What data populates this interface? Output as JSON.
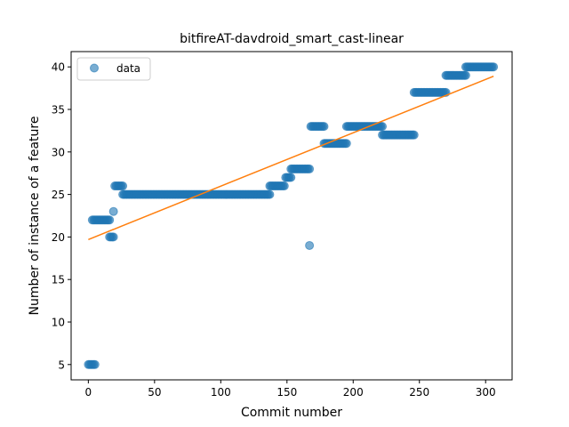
{
  "chart_data": {
    "type": "scatter",
    "title": "bitfireAT-davdroid_smart_cast-linear",
    "xlabel": "Commit number",
    "ylabel": "Number of instance of a feature",
    "xlim": [
      -13,
      320
    ],
    "ylim": [
      3.2,
      41.8
    ],
    "xticks": [
      0,
      50,
      100,
      150,
      200,
      250,
      300
    ],
    "yticks": [
      5,
      10,
      15,
      20,
      25,
      30,
      35,
      40
    ],
    "grid": false,
    "legend": {
      "position": "top-left",
      "entries": [
        "data"
      ]
    },
    "colors": {
      "data": "#1f77b4",
      "fit": "#ff7f0e"
    },
    "series": [
      {
        "name": "data",
        "kind": "points",
        "segments": [
          {
            "x_from": 0,
            "x_to": 5,
            "y": 5
          },
          {
            "x_from": 3,
            "x_to": 16,
            "y": 22
          },
          {
            "x_from": 16,
            "x_to": 19,
            "y": 20
          },
          {
            "x_from": 19,
            "x_to": 19,
            "y": 23
          },
          {
            "x_from": 20,
            "x_to": 26,
            "y": 26
          },
          {
            "x_from": 26,
            "x_to": 137,
            "y": 25
          },
          {
            "x_from": 137,
            "x_to": 148,
            "y": 26
          },
          {
            "x_from": 149,
            "x_to": 153,
            "y": 27
          },
          {
            "x_from": 153,
            "x_to": 167,
            "y": 28
          },
          {
            "x_from": 167,
            "x_to": 167,
            "y": 19
          },
          {
            "x_from": 168,
            "x_to": 178,
            "y": 33
          },
          {
            "x_from": 178,
            "x_to": 195,
            "y": 31
          },
          {
            "x_from": 195,
            "x_to": 222,
            "y": 33
          },
          {
            "x_from": 222,
            "x_to": 246,
            "y": 32
          },
          {
            "x_from": 246,
            "x_to": 270,
            "y": 37
          },
          {
            "x_from": 270,
            "x_to": 285,
            "y": 39
          },
          {
            "x_from": 285,
            "x_to": 306,
            "y": 40
          }
        ]
      },
      {
        "kind": "line",
        "x": [
          0,
          306
        ],
        "y": [
          19.7,
          38.9
        ]
      }
    ]
  }
}
